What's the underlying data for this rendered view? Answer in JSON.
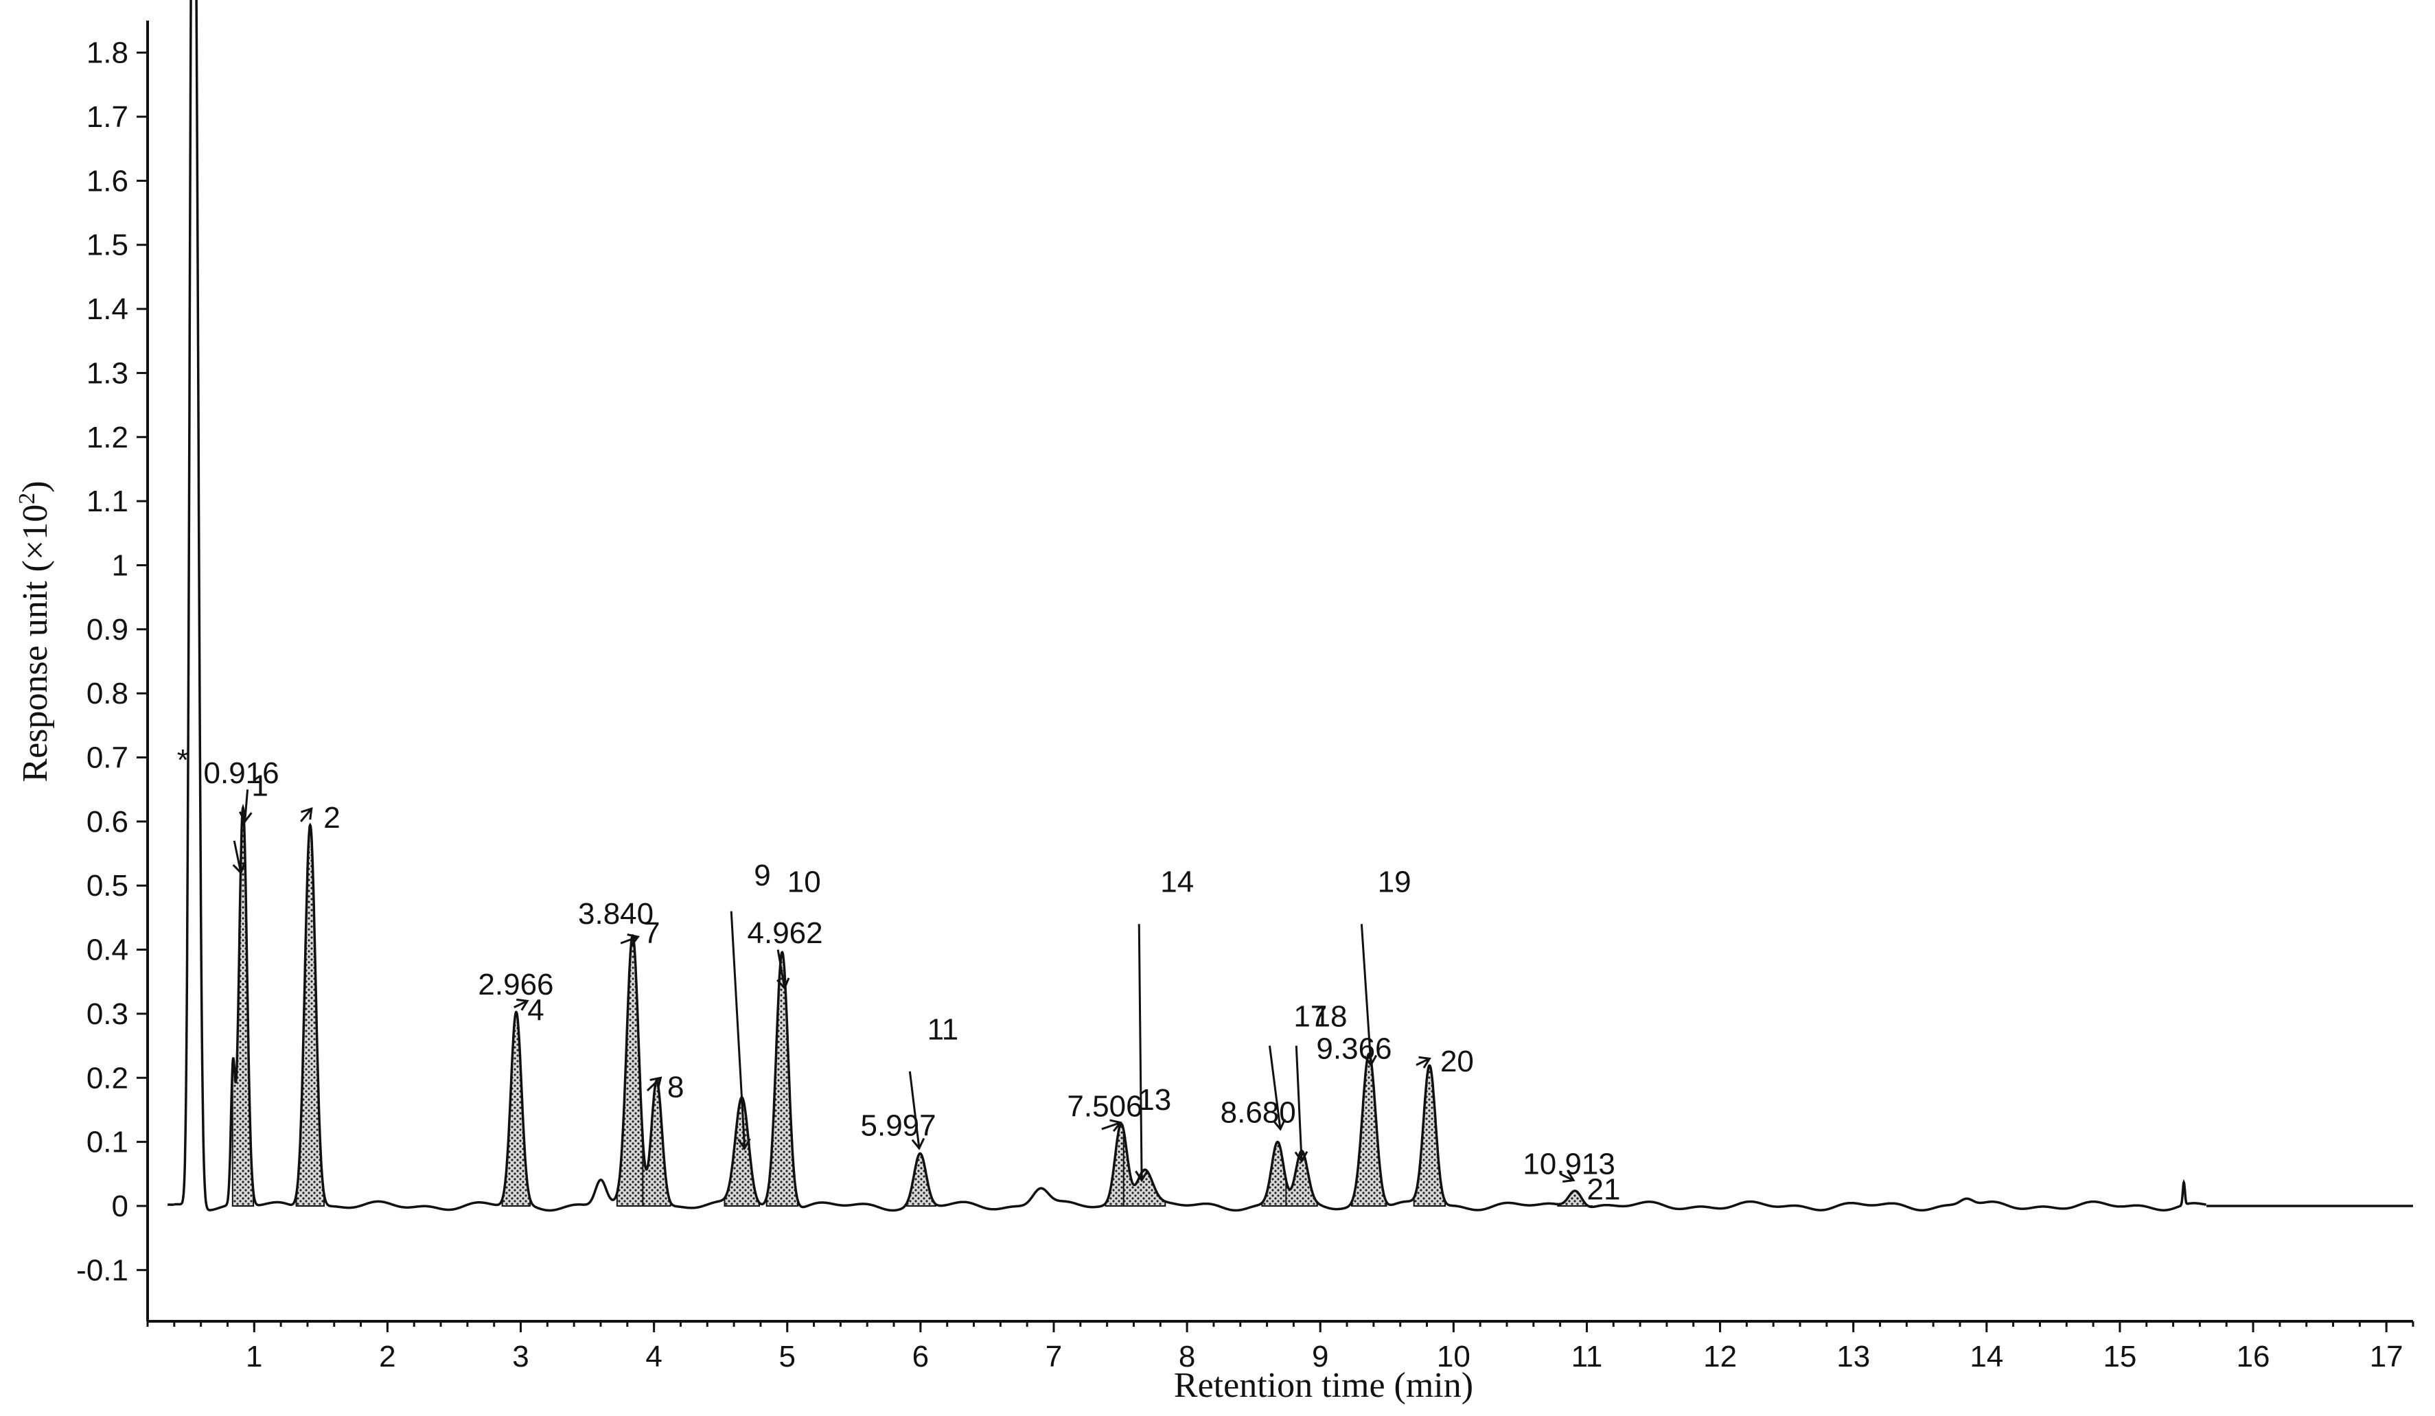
{
  "chart_data": {
    "type": "line",
    "title": "",
    "xlabel": "Retention time (min)",
    "ylabel_main": "Response unit (×10",
    "ylabel_sup": "2",
    "ylabel_tail": ")",
    "xlim": [
      0.2,
      17.2
    ],
    "ylim": [
      -0.18,
      1.85
    ],
    "xticks": [
      "1",
      "2",
      "3",
      "4",
      "5",
      "6",
      "7",
      "8",
      "9",
      "10",
      "11",
      "12",
      "13",
      "14",
      "15",
      "16",
      "17"
    ],
    "xtick_values": [
      1,
      2,
      3,
      4,
      5,
      6,
      7,
      8,
      9,
      10,
      11,
      12,
      13,
      14,
      15,
      16,
      17
    ],
    "yticks": [
      "-0.1",
      "0",
      "0.1",
      "0.2",
      "0.3",
      "0.4",
      "0.5",
      "0.6",
      "0.7",
      "0.8",
      "0.9",
      "1",
      "1.1",
      "1.2",
      "1.3",
      "1.4",
      "1.5",
      "1.6",
      "1.7",
      "1.8"
    ],
    "ytick_values": [
      -0.1,
      0,
      0.1,
      0.2,
      0.3,
      0.4,
      0.5,
      0.6,
      0.7,
      0.8,
      0.9,
      1,
      1.1,
      1.2,
      1.3,
      1.4,
      1.5,
      1.6,
      1.7,
      1.8
    ],
    "grid": false,
    "legend": "none",
    "series": [
      {
        "peaks": [
          {
            "rt": 0.56,
            "height": 1.7,
            "width": 0.025,
            "hatched": false
          },
          {
            "rt": 0.53,
            "height": 1.3,
            "width": 0.02,
            "hatched": false
          },
          {
            "rt": 0.84,
            "height": 0.2,
            "width": 0.015,
            "hatched": false
          },
          {
            "rt": 0.916,
            "height": 0.62,
            "width": 0.03,
            "hatched": true
          },
          {
            "rt": 1.42,
            "height": 0.6,
            "width": 0.04,
            "hatched": true
          },
          {
            "rt": 2.966,
            "height": 0.3,
            "width": 0.04,
            "hatched": true
          },
          {
            "rt": 3.6,
            "height": 0.04,
            "width": 0.04,
            "hatched": false
          },
          {
            "rt": 3.84,
            "height": 0.42,
            "width": 0.045,
            "hatched": true
          },
          {
            "rt": 4.02,
            "height": 0.2,
            "width": 0.04,
            "hatched": true
          },
          {
            "rt": 4.66,
            "height": 0.17,
            "width": 0.05,
            "hatched": true
          },
          {
            "rt": 4.962,
            "height": 0.4,
            "width": 0.045,
            "hatched": true
          },
          {
            "rt": 5.997,
            "height": 0.08,
            "width": 0.045,
            "hatched": true
          },
          {
            "rt": 6.9,
            "height": 0.03,
            "width": 0.06,
            "hatched": false
          },
          {
            "rt": 7.506,
            "height": 0.13,
            "width": 0.045,
            "hatched": true
          },
          {
            "rt": 7.68,
            "height": 0.06,
            "width": 0.06,
            "hatched": true
          },
          {
            "rt": 8.68,
            "height": 0.1,
            "width": 0.045,
            "hatched": true
          },
          {
            "rt": 8.86,
            "height": 0.08,
            "width": 0.045,
            "hatched": true
          },
          {
            "rt": 9.366,
            "height": 0.24,
            "width": 0.05,
            "hatched": true
          },
          {
            "rt": 9.82,
            "height": 0.22,
            "width": 0.045,
            "hatched": true
          },
          {
            "rt": 10.913,
            "height": 0.03,
            "width": 0.05,
            "hatched": true
          },
          {
            "rt": 13.85,
            "height": 0.012,
            "width": 0.05,
            "hatched": false
          },
          {
            "rt": 15.48,
            "height": 0.035,
            "width": 0.008,
            "hatched": false
          }
        ]
      }
    ],
    "annotations": [
      {
        "text": "*",
        "x": 0.42,
        "y": 0.68
      },
      {
        "text": "0.916",
        "x": 0.62,
        "y": 0.66
      },
      {
        "text": "1",
        "x": 0.98,
        "y": 0.64
      },
      {
        "text": "2",
        "x": 1.52,
        "y": 0.59
      },
      {
        "text": "2.966",
        "x": 2.68,
        "y": 0.33
      },
      {
        "text": "4",
        "x": 3.05,
        "y": 0.29
      },
      {
        "text": "3.840",
        "x": 3.43,
        "y": 0.44
      },
      {
        "text": "7",
        "x": 3.92,
        "y": 0.41
      },
      {
        "text": "8",
        "x": 4.1,
        "y": 0.17
      },
      {
        "text": "9",
        "x": 4.75,
        "y": 0.5
      },
      {
        "text": "10",
        "x": 5.0,
        "y": 0.49
      },
      {
        "text": "4.962",
        "x": 4.7,
        "y": 0.41
      },
      {
        "text": "11",
        "x": 6.05,
        "y": 0.26
      },
      {
        "text": "5.997",
        "x": 5.55,
        "y": 0.11
      },
      {
        "text": "7.506",
        "x": 7.1,
        "y": 0.14
      },
      {
        "text": "13",
        "x": 7.63,
        "y": 0.15
      },
      {
        "text": "14",
        "x": 7.8,
        "y": 0.49
      },
      {
        "text": "8.680",
        "x": 8.25,
        "y": 0.13
      },
      {
        "text": "17",
        "x": 8.8,
        "y": 0.28
      },
      {
        "text": "18",
        "x": 8.95,
        "y": 0.28
      },
      {
        "text": "19",
        "x": 9.43,
        "y": 0.49
      },
      {
        "text": "9.366",
        "x": 8.97,
        "y": 0.23
      },
      {
        "text": "20",
        "x": 9.9,
        "y": 0.21
      },
      {
        "text": "10.913",
        "x": 10.52,
        "y": 0.05
      },
      {
        "text": "21",
        "x": 11.0,
        "y": 0.01
      }
    ],
    "pointers": [
      {
        "x1": 0.85,
        "y1": 0.57,
        "x2": 0.9,
        "y2": 0.52
      },
      {
        "x1": 0.95,
        "y1": 0.65,
        "x2": 0.93,
        "y2": 0.6
      },
      {
        "x1": 1.35,
        "y1": 0.6,
        "x2": 1.43,
        "y2": 0.62
      },
      {
        "x1": 2.95,
        "y1": 0.31,
        "x2": 3.05,
        "y2": 0.32
      },
      {
        "x1": 3.75,
        "y1": 0.41,
        "x2": 3.88,
        "y2": 0.42
      },
      {
        "x1": 3.95,
        "y1": 0.18,
        "x2": 4.05,
        "y2": 0.2
      },
      {
        "x1": 4.58,
        "y1": 0.46,
        "x2": 4.68,
        "y2": 0.09
      },
      {
        "x1": 4.93,
        "y1": 0.4,
        "x2": 4.98,
        "y2": 0.34
      },
      {
        "x1": 5.92,
        "y1": 0.21,
        "x2": 5.99,
        "y2": 0.09
      },
      {
        "x1": 7.36,
        "y1": 0.12,
        "x2": 7.5,
        "y2": 0.13
      },
      {
        "x1": 7.64,
        "y1": 0.44,
        "x2": 7.66,
        "y2": 0.04
      },
      {
        "x1": 8.62,
        "y1": 0.25,
        "x2": 8.7,
        "y2": 0.12
      },
      {
        "x1": 8.82,
        "y1": 0.25,
        "x2": 8.86,
        "y2": 0.07
      },
      {
        "x1": 9.31,
        "y1": 0.44,
        "x2": 9.38,
        "y2": 0.22
      },
      {
        "x1": 9.72,
        "y1": 0.22,
        "x2": 9.82,
        "y2": 0.23
      },
      {
        "x1": 10.8,
        "y1": 0.05,
        "x2": 10.9,
        "y2": 0.04
      }
    ]
  }
}
